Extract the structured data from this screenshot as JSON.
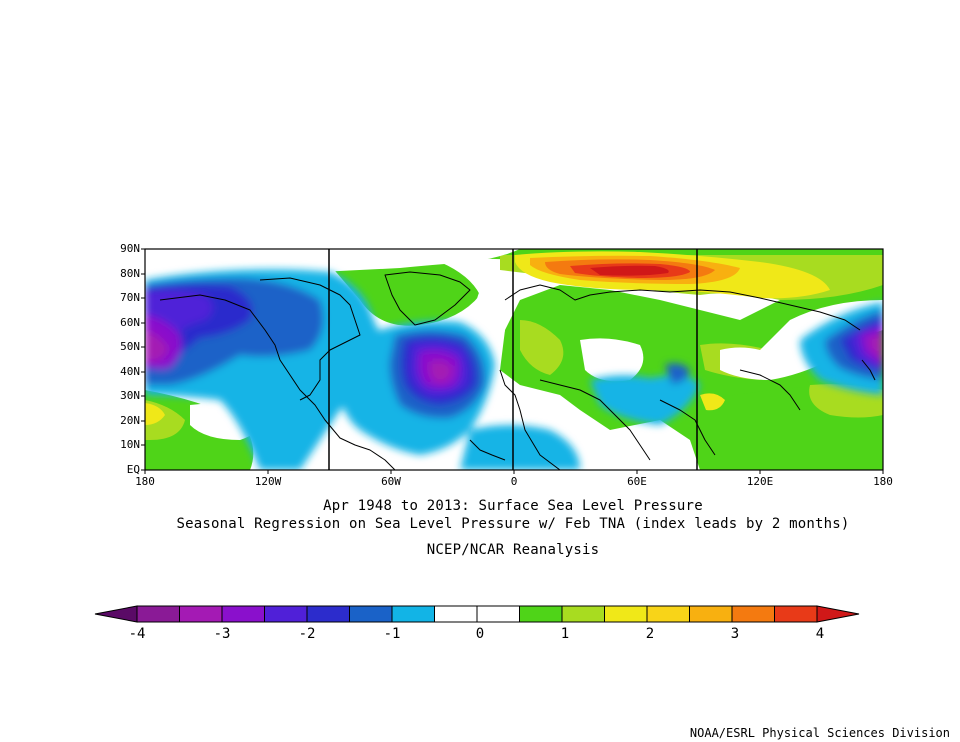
{
  "map": {
    "lat_labels": [
      "90N",
      "80N",
      "70N",
      "60N",
      "50N",
      "40N",
      "30N",
      "20N",
      "10N",
      "EQ"
    ],
    "lon_labels": [
      "180",
      "120W",
      "60W",
      "0",
      "60E",
      "120E",
      "180"
    ],
    "vertical_lines_lon": [
      -90,
      0,
      90
    ],
    "ocean_color": "#ffffff",
    "coast_color": "#000000"
  },
  "titles": {
    "line1": "Apr 1948 to 2013: Surface Sea Level Pressure",
    "line2": "Seasonal Regression on Sea Level Pressure  w/ Feb TNA (index leads by 2 months)",
    "line3": "NCEP/NCAR Reanalysis"
  },
  "colorbar": {
    "colors": [
      "#5a0a66",
      "#8a1a96",
      "#a41ab4",
      "#8a10cc",
      "#5020d8",
      "#2c2ccc",
      "#1a62c8",
      "#12b4e6",
      "#ffffff",
      "#ffffff",
      "#4fd418",
      "#a8dc20",
      "#f0e818",
      "#f8d418",
      "#f8b010",
      "#f47a10",
      "#e83a18",
      "#d01818"
    ],
    "labels": [
      "-4",
      "-3",
      "-2",
      "-1",
      "0",
      "1",
      "2",
      "3",
      "4"
    ],
    "label_values": [
      -4,
      -3,
      -2,
      -1,
      0,
      1,
      2,
      3,
      4
    ]
  },
  "credit": "NOAA/ESRL Physical Sciences Division"
}
